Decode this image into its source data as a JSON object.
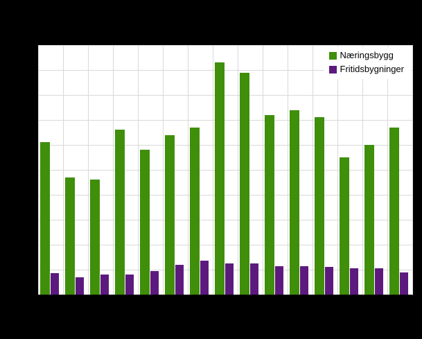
{
  "chart": {
    "legend": {
      "items": [
        {
          "label": "Næringsbygg",
          "color": "#3f8f0a"
        },
        {
          "label": "Fritidsbygninger",
          "color": "#5c1a7e"
        }
      ]
    },
    "colors": {
      "background": "#000000",
      "plot_background": "#ffffff",
      "grid": "#d9d9d9"
    }
  },
  "chart_data": {
    "type": "bar",
    "title": "",
    "xlabel": "",
    "ylabel": "",
    "categories": [
      "",
      "",
      "",
      "",
      "",
      "",
      "",
      "",
      "",
      "",
      "",
      "",
      "",
      "",
      ""
    ],
    "series": [
      {
        "name": "Næringsbygg",
        "color": "#3f8f0a",
        "values": [
          61,
          47,
          46,
          66,
          58,
          64,
          67,
          93,
          89,
          72,
          74,
          71,
          55,
          60,
          67
        ]
      },
      {
        "name": "Fritidsbygninger",
        "color": "#5c1a7e",
        "values": [
          8.5,
          7,
          8,
          8,
          9.5,
          12,
          13.5,
          12.5,
          12.5,
          11.5,
          11.5,
          11,
          10.5,
          10.5,
          9
        ]
      }
    ],
    "ylim": [
      0,
      100
    ],
    "grid": true,
    "legend_position": "top-right"
  }
}
